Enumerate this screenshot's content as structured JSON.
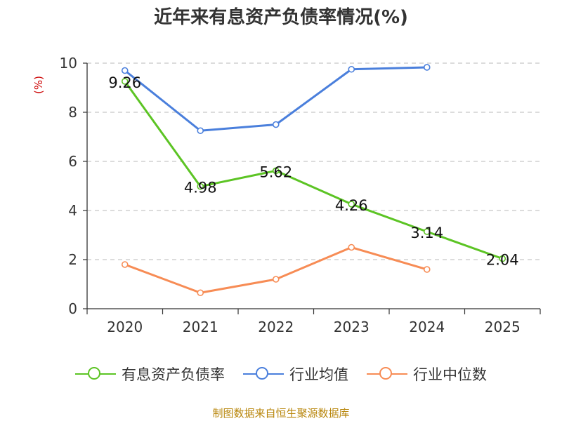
{
  "chart_data": {
    "type": "line",
    "title": "近年来有息资产负债率情况(%)",
    "ylabel": "(%)",
    "xlabel": "",
    "categories": [
      "2020",
      "2021",
      "2022",
      "2023",
      "2024",
      "2025"
    ],
    "ylim": [
      0,
      10
    ],
    "yticks": [
      0,
      2,
      4,
      6,
      8,
      10
    ],
    "grid": "horizontal-dashed",
    "legend_position": "bottom",
    "series": [
      {
        "name": "有息资产负债率",
        "color": "#5cc424",
        "values": [
          9.26,
          4.98,
          5.62,
          4.26,
          3.14,
          2.04
        ],
        "labels": [
          "9.26",
          "4.98",
          "5.62",
          "4.26",
          "3.14",
          "2.04"
        ]
      },
      {
        "name": "行业均值",
        "color": "#4a7fdc",
        "values": [
          9.7,
          7.25,
          7.5,
          9.75,
          9.83,
          null
        ]
      },
      {
        "name": "行业中位数",
        "color": "#f78c55",
        "values": [
          1.8,
          0.65,
          1.2,
          2.5,
          1.6,
          null
        ]
      }
    ],
    "source": "制图数据来自恒生聚源数据库"
  }
}
